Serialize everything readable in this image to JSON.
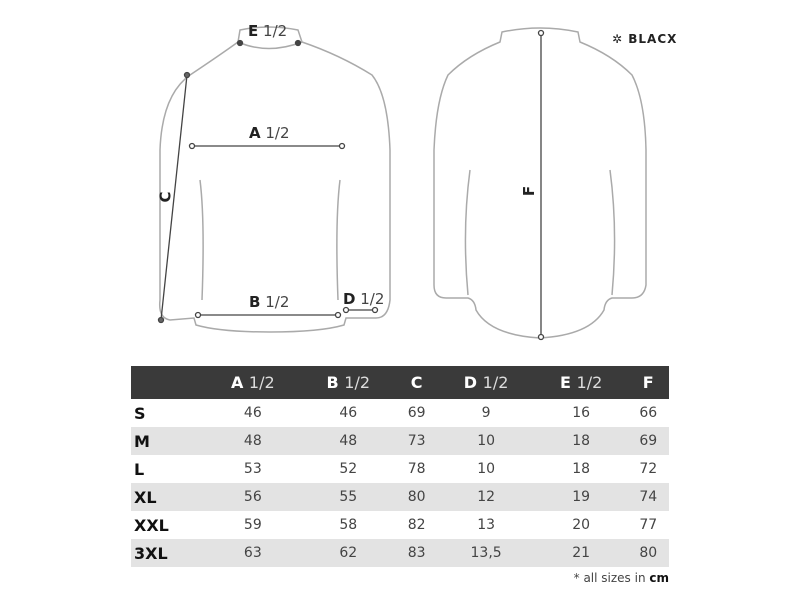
{
  "brand": "BLACX",
  "diagram_labels": {
    "E": {
      "letter": "E",
      "suffix": "1/2"
    },
    "A": {
      "letter": "A",
      "suffix": "1/2"
    },
    "B": {
      "letter": "B",
      "suffix": "1/2"
    },
    "D": {
      "letter": "D",
      "suffix": "1/2"
    },
    "C": {
      "letter": "C"
    },
    "F": {
      "letter": "F"
    }
  },
  "table": {
    "headers": [
      {
        "letter": "A",
        "suffix": "1/2"
      },
      {
        "letter": "B",
        "suffix": "1/2"
      },
      {
        "letter": "C",
        "suffix": ""
      },
      {
        "letter": "D",
        "suffix": "1/2"
      },
      {
        "letter": "E",
        "suffix": "1/2"
      },
      {
        "letter": "F",
        "suffix": ""
      }
    ],
    "rows": [
      {
        "size": "S",
        "values": [
          "46",
          "46",
          "69",
          "9",
          "16",
          "66"
        ]
      },
      {
        "size": "M",
        "values": [
          "48",
          "48",
          "73",
          "10",
          "18",
          "69"
        ]
      },
      {
        "size": "L",
        "values": [
          "53",
          "52",
          "78",
          "10",
          "18",
          "72"
        ]
      },
      {
        "size": "XL",
        "values": [
          "56",
          "55",
          "80",
          "12",
          "19",
          "74"
        ]
      },
      {
        "size": "XXL",
        "values": [
          "59",
          "58",
          "82",
          "13",
          "20",
          "77"
        ]
      },
      {
        "size": "3XL",
        "values": [
          "63",
          "62",
          "83",
          "13,5",
          "21",
          "80"
        ]
      }
    ]
  },
  "footnote": {
    "text": "* all sizes in ",
    "unit": "cm"
  },
  "colors": {
    "header_bg": "#3a3a3a",
    "stripe": "#e3e3e3",
    "outline": "#aaaaaa"
  }
}
